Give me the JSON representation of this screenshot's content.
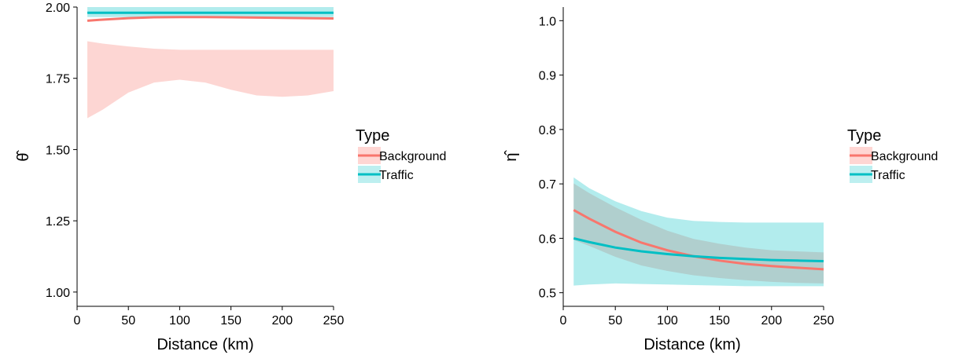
{
  "chart_data": [
    {
      "type": "line",
      "ylabel": "θ̂",
      "xlabel": "Distance (km)",
      "xlim": [
        0,
        250
      ],
      "ylim": [
        0.95,
        2.0
      ],
      "xticks": [
        0,
        50,
        100,
        150,
        200,
        250
      ],
      "yticks": [
        1.0,
        1.25,
        1.5,
        1.75,
        2.0
      ],
      "ytick_labels": [
        "1.00",
        "1.25",
        "1.50",
        "1.75",
        "2.00"
      ],
      "grid": false,
      "legend": {
        "title": "Type",
        "placement": "right"
      },
      "x": [
        10,
        25,
        50,
        75,
        100,
        125,
        150,
        175,
        200,
        225,
        250
      ],
      "series": [
        {
          "name": "Background",
          "color": "#F8766D",
          "band_color": "#FFD6D3",
          "values": [
            1.952,
            1.956,
            1.961,
            1.964,
            1.965,
            1.965,
            1.964,
            1.963,
            1.962,
            1.961,
            1.96
          ],
          "lower": [
            1.61,
            1.64,
            1.7,
            1.735,
            1.745,
            1.735,
            1.71,
            1.69,
            1.685,
            1.69,
            1.705
          ],
          "upper": [
            1.88,
            1.872,
            1.862,
            1.854,
            1.85,
            1.85,
            1.85,
            1.85,
            1.85,
            1.85,
            1.85
          ]
        },
        {
          "name": "Traffic",
          "color": "#00BFC4",
          "band_color": "#BDEFF0",
          "values": [
            1.98,
            1.98,
            1.98,
            1.98,
            1.98,
            1.98,
            1.98,
            1.98,
            1.98,
            1.98,
            1.98
          ],
          "lower": [
            1.965,
            1.965,
            1.965,
            1.965,
            1.965,
            1.965,
            1.965,
            1.965,
            1.965,
            1.965,
            1.965
          ],
          "upper": [
            2.0,
            2.0,
            2.0,
            2.0,
            2.0,
            2.0,
            2.0,
            2.0,
            2.0,
            2.0,
            2.0
          ]
        }
      ]
    },
    {
      "type": "line",
      "ylabel": "η̂",
      "xlabel": "Distance (km)",
      "xlim": [
        0,
        250
      ],
      "ylim": [
        0.475,
        1.025
      ],
      "xticks": [
        0,
        50,
        100,
        150,
        200,
        250
      ],
      "yticks": [
        0.5,
        0.6,
        0.7,
        0.8,
        0.9,
        1.0
      ],
      "ytick_labels": [
        "0.5",
        "0.6",
        "0.7",
        "0.8",
        "0.9",
        "1.0"
      ],
      "grid": false,
      "legend": {
        "title": "Type",
        "placement": "right"
      },
      "x": [
        10,
        25,
        50,
        75,
        100,
        125,
        150,
        175,
        200,
        225,
        250
      ],
      "series": [
        {
          "name": "Background",
          "color": "#F8766D",
          "band_color": "#FFD6D3",
          "values": [
            0.652,
            0.636,
            0.612,
            0.592,
            0.578,
            0.567,
            0.559,
            0.553,
            0.549,
            0.546,
            0.543
          ],
          "lower": [
            0.597,
            0.586,
            0.566,
            0.55,
            0.54,
            0.532,
            0.527,
            0.523,
            0.52,
            0.518,
            0.517
          ],
          "upper": [
            0.701,
            0.683,
            0.657,
            0.634,
            0.614,
            0.599,
            0.59,
            0.583,
            0.578,
            0.576,
            0.574
          ]
        },
        {
          "name": "Traffic",
          "color": "#00BFC4",
          "band_color": "#BDEFF0",
          "values": [
            0.6,
            0.593,
            0.583,
            0.576,
            0.571,
            0.567,
            0.564,
            0.562,
            0.56,
            0.559,
            0.558
          ],
          "lower": [
            0.513,
            0.515,
            0.517,
            0.516,
            0.515,
            0.514,
            0.513,
            0.512,
            0.512,
            0.512,
            0.512
          ],
          "upper": [
            0.712,
            0.692,
            0.668,
            0.65,
            0.638,
            0.632,
            0.63,
            0.629,
            0.629,
            0.629,
            0.629
          ]
        }
      ]
    }
  ]
}
